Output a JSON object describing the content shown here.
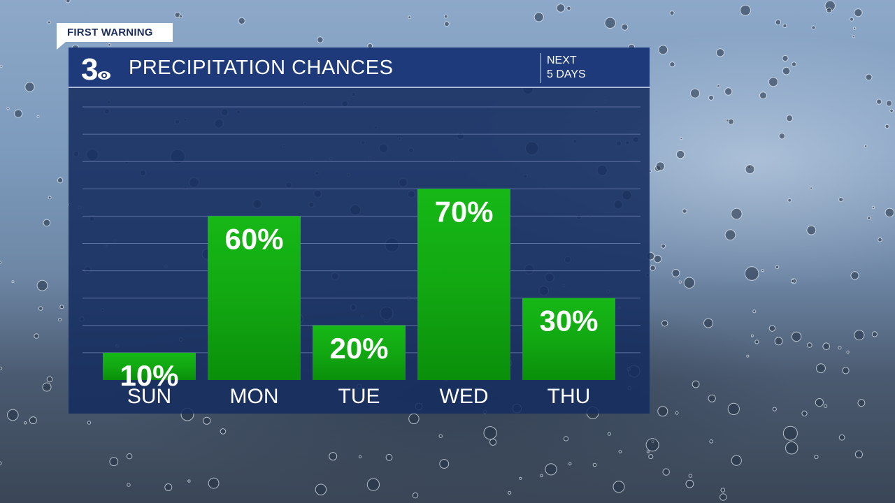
{
  "badge": {
    "text": "FIRST WARNING"
  },
  "header": {
    "logo": {
      "text": "3",
      "icon": "cbs-eye-icon"
    },
    "title": "PRECIPITATION CHANCES",
    "range_line1": "NEXT",
    "range_line2": "5 DAYS"
  },
  "colors": {
    "panel": "#1c3468",
    "header": "#1e3a7a",
    "bar_light": "#16b816",
    "bar_dark": "#0a8f0a",
    "grid": "#5d70a0"
  },
  "chart_data": {
    "type": "bar",
    "categories": [
      "SUN",
      "MON",
      "TUE",
      "WED",
      "THU"
    ],
    "values": [
      10,
      60,
      20,
      70,
      30
    ],
    "value_labels": [
      "10%",
      "60%",
      "20%",
      "70%",
      "30%"
    ],
    "ylabel": "",
    "xlabel": "",
    "ylim": [
      0,
      100
    ],
    "grid": true
  }
}
